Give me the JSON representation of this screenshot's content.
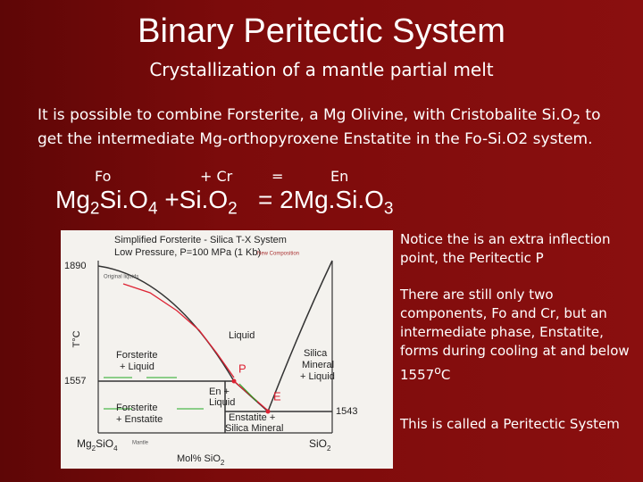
{
  "title": "Binary Peritectic System",
  "subtitle": "Crystallization of a mantle partial melt",
  "intro": {
    "text": "It is possible to combine Forsterite, a Mg Olivine, with Cristobalite Si.O",
    "sub": "2",
    "rest": "to get the intermediate Mg-orthopyroxene Enstatite in the Fo-Si.O2 system."
  },
  "reaction_labels": [
    "Fo",
    "+ Cr",
    "=",
    "En"
  ],
  "equation": [
    {
      "text": "Mg",
      "sub": "2"
    },
    {
      "text": "Si.O",
      "sub": "4"
    },
    {
      "text": "+Si.O",
      "sub": "2"
    },
    {
      "text": "= 2Mg.Si.O",
      "sub": "3"
    }
  ],
  "notes": [
    {
      "text": "Notice the is an extra inflection point, the Peritectic  P"
    },
    {
      "text": "There are still only two components, Fo and Cr, but an intermediate phase, Enstatite, forms during cooling at and below 1557",
      "sup": "o",
      "tail": "C"
    },
    {
      "text": "This is called a Peritectic System"
    }
  ],
  "diagram": {
    "title": "Simplified Forsterite - Silica T-X System",
    "subtitle": "Low Pressure, P=100 MPa (1 Kb)",
    "temperatures": [
      "1890",
      "1557",
      "1543"
    ],
    "y_axis": "T°C",
    "x_axis": {
      "text": "Mol% SiO",
      "sub": "2"
    },
    "left_end": {
      "text": "Mg",
      "sub": "2",
      "text2": "SiO",
      "sub2": "4"
    },
    "right_end": {
      "text": "SiO",
      "sub": "2"
    },
    "fields": {
      "liquid": "Liquid",
      "fo_liq": [
        "Forsterite",
        "+ Liquid"
      ],
      "silica_liq": [
        "Silica",
        "Mineral",
        "+ Liquid"
      ],
      "en_liq": [
        "En +",
        "Liquid"
      ],
      "fo_en": [
        "Forsterite",
        "+ Enstatite"
      ],
      "en_silica": [
        "Enstatite +",
        "Silica Mineral"
      ]
    },
    "points": {
      "peritectic": "P",
      "eutectic": "E"
    },
    "annotations": [
      "Original liquids",
      "New Composition",
      "Mantle"
    ]
  }
}
